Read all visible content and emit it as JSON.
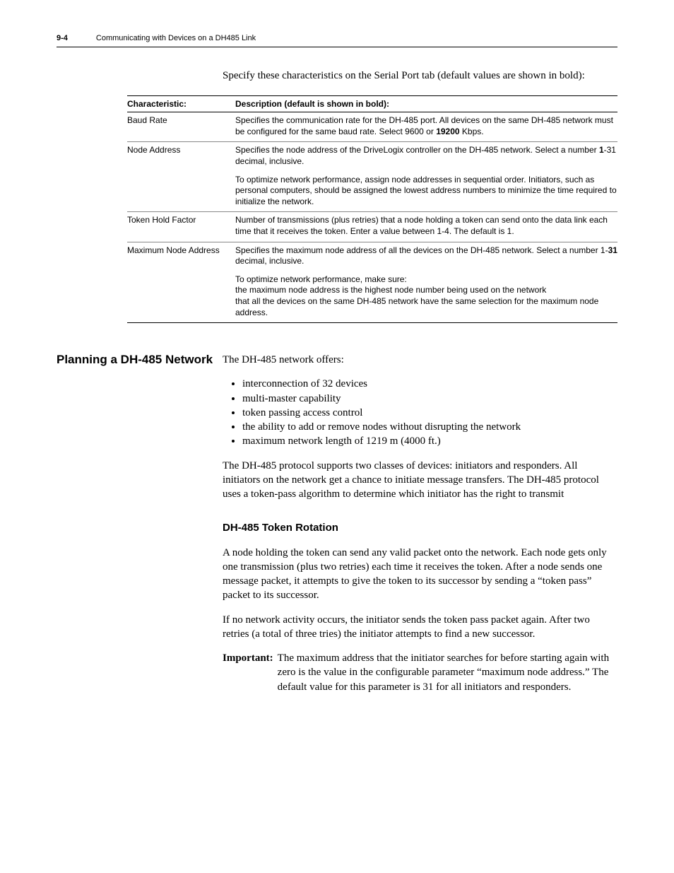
{
  "header": {
    "pagenum": "9-4",
    "title": "Communicating with Devices on a DH485 Link"
  },
  "intro": "Specify these characteristics on the Serial Port tab (default values are shown in bold):",
  "table": {
    "head_a": "Characteristic:",
    "head_b": "Description (default is shown in bold):",
    "rows": [
      {
        "a": "Baud Rate",
        "b_html": "Specifies the communication rate for the DH-485 port. All devices on the same DH-485 network must be configured for the same baud rate. Select 9600 or <span class='bold'>19200</span> Kbps."
      },
      {
        "a": "Node Address",
        "b_html": "Specifies the node address of the DriveLogix controller on the DH-485 network. Select a number <span class='bold'>1</span>-31 decimal, inclusive.",
        "b2": "To optimize network performance, assign node addresses in sequential order. Initiators, such as personal computers, should be assigned the lowest address numbers to minimize the time required to initialize the network."
      },
      {
        "a": "Token Hold Factor",
        "b_html": "Number of transmissions (plus retries) that a node holding a token can send onto the data link each time that it receives the token. Enter a value between 1-4. The default is 1."
      },
      {
        "a": "Maximum Node Address",
        "b_html": "Specifies the maximum node address of all the devices on the DH-485 network. Select a number 1-<span class='bold'>31</span> decimal, inclusive.",
        "b2": "To optimize network performance, make sure:",
        "b3": " the maximum node address is the highest node number being used on the network",
        "b4": " that all the devices on the same DH-485 network have the same selection for the maximum node address."
      }
    ]
  },
  "section": {
    "side_heading": "Planning a DH-485 Network",
    "lead": "The DH-485 network offers:",
    "bullets": [
      "interconnection of 32 devices",
      "multi-master capability",
      "token passing access control",
      "the ability to add or remove nodes without disrupting the network",
      "maximum network length of 1219 m (4000 ft.)"
    ],
    "para1": "The DH-485 protocol supports two classes of devices: initiators and responders. All initiators on the network get a chance to initiate message transfers. The DH-485 protocol uses a token-pass algorithm to determine which initiator has the right to transmit",
    "sub_heading": "DH-485 Token Rotation",
    "para2": "A node holding the token can send any valid packet onto the network. Each node gets only one transmission (plus two retries) each time it receives the token. After a node sends one message packet, it attempts to give the token to its successor by sending a “token pass” packet to its successor.",
    "para3": "If no network activity occurs, the initiator sends the token pass packet again. After two retries (a total of three tries) the initiator attempts to find a new successor.",
    "important_label": "Important:",
    "important_text": "The maximum address that the initiator searches for before starting again with zero is the value in the configurable parameter “maximum node address.” The default value for this parameter is 31 for all initiators and responders."
  }
}
